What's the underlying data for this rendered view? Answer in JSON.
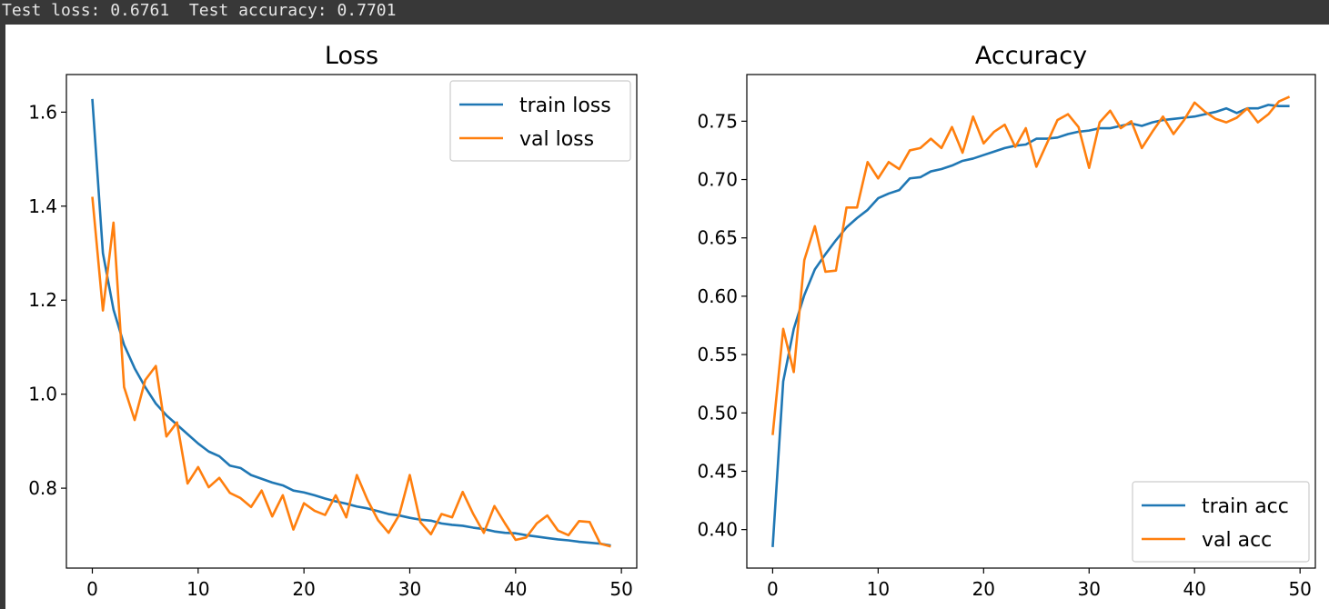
{
  "console": {
    "text": "Test loss: 0.6761  Test accuracy: 0.7701"
  },
  "chart_data": [
    {
      "type": "line",
      "title": "Loss",
      "xlabel": "",
      "ylabel": "",
      "xlim": [
        -2.45,
        51.45
      ],
      "ylim": [
        0.63,
        1.68
      ],
      "xticks": [
        0,
        10,
        20,
        30,
        40,
        50
      ],
      "yticks": [
        0.8,
        1.0,
        1.2,
        1.4,
        1.6
      ],
      "ytick_labels": [
        "0.8",
        "1.0",
        "1.2",
        "1.4",
        "1.6"
      ],
      "grid": false,
      "legend": "top-right",
      "x": [
        0,
        1,
        2,
        3,
        4,
        5,
        6,
        7,
        8,
        9,
        10,
        11,
        12,
        13,
        14,
        15,
        16,
        17,
        18,
        19,
        20,
        21,
        22,
        23,
        24,
        25,
        26,
        27,
        28,
        29,
        30,
        31,
        32,
        33,
        34,
        35,
        36,
        37,
        38,
        39,
        40,
        41,
        42,
        43,
        44,
        45,
        46,
        47,
        48,
        49
      ],
      "series": [
        {
          "name": "train loss",
          "color": "#1f77b4",
          "values": [
            1.628,
            1.3,
            1.18,
            1.105,
            1.055,
            1.015,
            0.98,
            0.955,
            0.935,
            0.915,
            0.895,
            0.878,
            0.868,
            0.848,
            0.843,
            0.828,
            0.82,
            0.812,
            0.806,
            0.795,
            0.791,
            0.785,
            0.778,
            0.772,
            0.767,
            0.761,
            0.757,
            0.751,
            0.745,
            0.742,
            0.737,
            0.733,
            0.731,
            0.725,
            0.722,
            0.72,
            0.716,
            0.713,
            0.708,
            0.705,
            0.704,
            0.7,
            0.697,
            0.694,
            0.691,
            0.689,
            0.686,
            0.684,
            0.682,
            0.678
          ]
        },
        {
          "name": "val loss",
          "color": "#ff7f0e",
          "values": [
            1.42,
            1.178,
            1.365,
            1.015,
            0.945,
            1.03,
            1.06,
            0.91,
            0.94,
            0.81,
            0.845,
            0.802,
            0.822,
            0.79,
            0.779,
            0.76,
            0.795,
            0.74,
            0.785,
            0.712,
            0.768,
            0.752,
            0.743,
            0.785,
            0.738,
            0.828,
            0.775,
            0.732,
            0.705,
            0.743,
            0.828,
            0.728,
            0.702,
            0.745,
            0.738,
            0.792,
            0.745,
            0.705,
            0.762,
            0.725,
            0.69,
            0.695,
            0.725,
            0.742,
            0.71,
            0.7,
            0.73,
            0.728,
            0.682,
            0.676
          ]
        }
      ]
    },
    {
      "type": "line",
      "title": "Accuracy",
      "xlabel": "",
      "ylabel": "",
      "xlim": [
        -2.45,
        51.45
      ],
      "ylim": [
        0.367,
        0.79
      ],
      "xticks": [
        0,
        10,
        20,
        30,
        40,
        50
      ],
      "yticks": [
        0.4,
        0.45,
        0.5,
        0.55,
        0.6,
        0.65,
        0.7,
        0.75
      ],
      "ytick_labels": [
        "0.40",
        "0.45",
        "0.50",
        "0.55",
        "0.60",
        "0.65",
        "0.70",
        "0.75"
      ],
      "grid": false,
      "legend": "bottom-right",
      "x": [
        0,
        1,
        2,
        3,
        4,
        5,
        6,
        7,
        8,
        9,
        10,
        11,
        12,
        13,
        14,
        15,
        16,
        17,
        18,
        19,
        20,
        21,
        22,
        23,
        24,
        25,
        26,
        27,
        28,
        29,
        30,
        31,
        32,
        33,
        34,
        35,
        36,
        37,
        38,
        39,
        40,
        41,
        42,
        43,
        44,
        45,
        46,
        47,
        48,
        49
      ],
      "series": [
        {
          "name": "train acc",
          "color": "#1f77b4",
          "values": [
            0.385,
            0.527,
            0.572,
            0.601,
            0.623,
            0.636,
            0.648,
            0.659,
            0.667,
            0.674,
            0.684,
            0.688,
            0.691,
            0.701,
            0.702,
            0.707,
            0.709,
            0.712,
            0.716,
            0.718,
            0.721,
            0.724,
            0.727,
            0.729,
            0.73,
            0.735,
            0.735,
            0.736,
            0.739,
            0.741,
            0.742,
            0.744,
            0.744,
            0.746,
            0.748,
            0.746,
            0.749,
            0.751,
            0.752,
            0.753,
            0.754,
            0.756,
            0.758,
            0.761,
            0.757,
            0.761,
            0.761,
            0.764,
            0.763,
            0.763
          ]
        },
        {
          "name": "val acc",
          "color": "#ff7f0e",
          "values": [
            0.481,
            0.572,
            0.535,
            0.631,
            0.66,
            0.621,
            0.622,
            0.676,
            0.676,
            0.715,
            0.701,
            0.715,
            0.709,
            0.725,
            0.727,
            0.735,
            0.727,
            0.745,
            0.723,
            0.754,
            0.731,
            0.741,
            0.747,
            0.728,
            0.744,
            0.711,
            0.731,
            0.751,
            0.756,
            0.745,
            0.71,
            0.749,
            0.759,
            0.744,
            0.75,
            0.727,
            0.741,
            0.754,
            0.739,
            0.751,
            0.766,
            0.758,
            0.752,
            0.749,
            0.753,
            0.761,
            0.749,
            0.756,
            0.767,
            0.771
          ]
        }
      ]
    }
  ]
}
